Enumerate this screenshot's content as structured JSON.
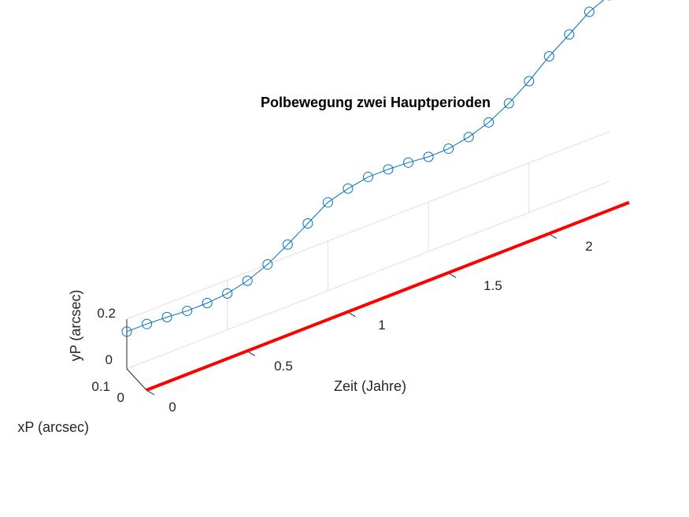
{
  "chart_data": {
    "type": "line",
    "title": "Polbewegung zwei Hauptperioden",
    "xlabel": "Zeit (Jahre)",
    "ylabel": "yP (arcsec)",
    "zlabel": "xP (arcsec)",
    "x_ticks": [
      "0",
      "0.5",
      "1",
      "1.5",
      "2"
    ],
    "y_ticks": [
      "0",
      "0.2"
    ],
    "z_ticks": [
      "0",
      "0.1"
    ],
    "grid": true,
    "colors": {
      "series": "#0072BD",
      "reference": "#FF0000",
      "axis": "#262626",
      "grid": "#DFDFDF"
    },
    "series": [
      {
        "x": [
          0,
          0.1,
          0.2,
          0.3,
          0.4,
          0.5,
          0.6,
          0.7,
          0.8,
          0.9,
          1.0,
          1.1,
          1.2,
          1.3,
          1.4,
          1.5,
          1.6,
          1.7,
          1.8,
          1.9,
          2.0,
          2.1,
          2.2,
          2.3,
          2.4
        ],
        "y": [
          0.236,
          0.235,
          0.229,
          0.219,
          0.219,
          0.23,
          0.261,
          0.315,
          0.392,
          0.476,
          0.56,
          0.598,
          0.622,
          0.621,
          0.614,
          0.601,
          0.603,
          0.627,
          0.671,
          0.742,
          0.833,
          0.941,
          1.03,
          1.124,
          1.18
        ]
      },
      {
        "x": [
          0,
          2.4
        ],
        "y": [
          0,
          0
        ]
      }
    ]
  }
}
